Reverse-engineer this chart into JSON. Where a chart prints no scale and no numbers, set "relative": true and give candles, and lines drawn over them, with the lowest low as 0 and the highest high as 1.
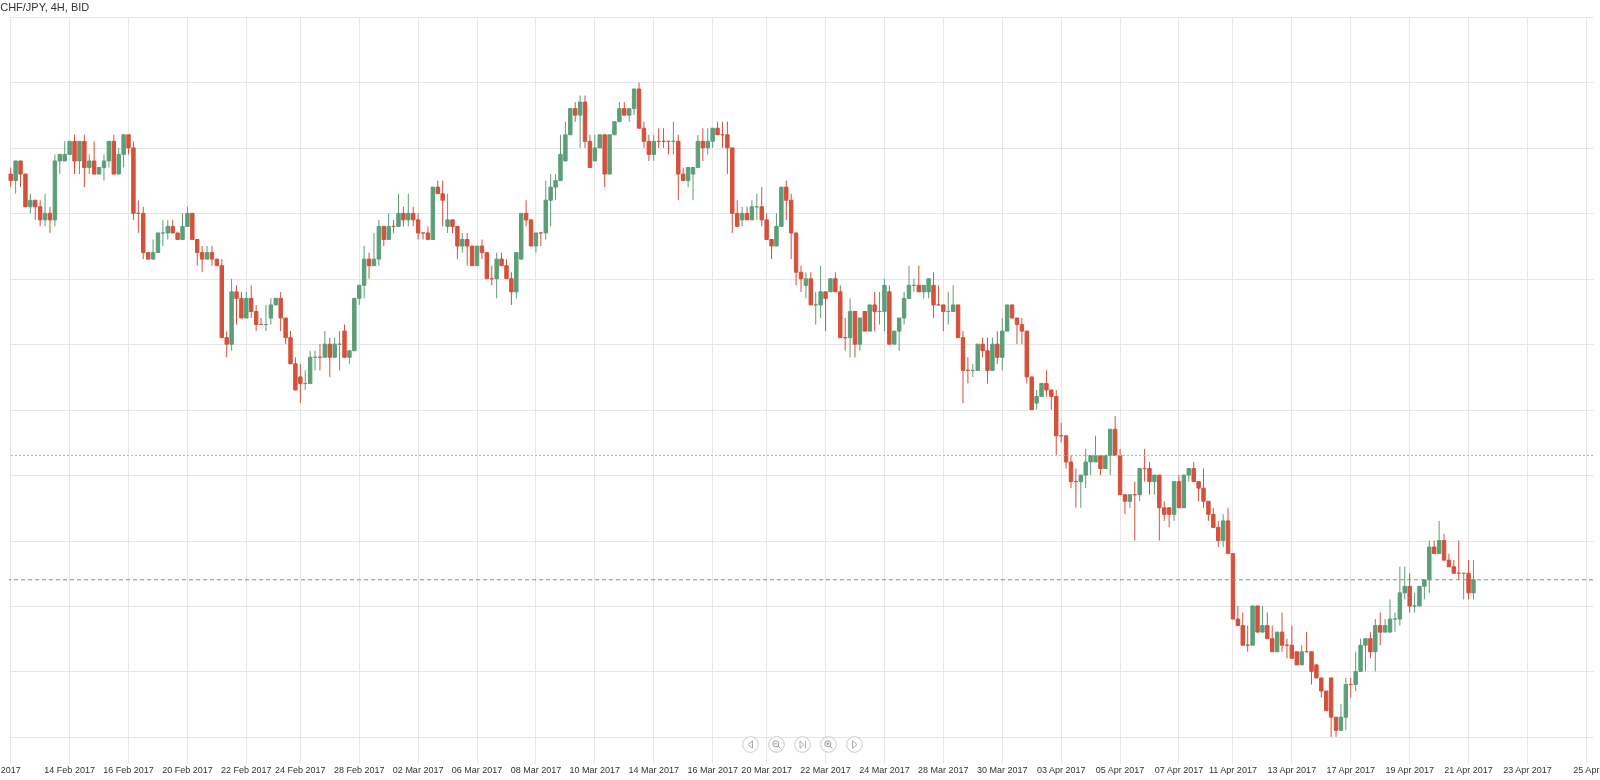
{
  "chart_data": {
    "type": "candlestick",
    "title": "CHF/JPY, 4H, BID",
    "relative": true,
    "grid": true,
    "tick_labels": "x",
    "colors": [
      "#d4513c",
      "#5c9e78",
      "#d4513c",
      "#d4513c",
      "#5c9e78",
      "#d4513c",
      "#d4513c",
      "#5c9e78",
      "#d4513c",
      "#5c9e78",
      "#5c9e78",
      "#5c9e78",
      "#5c9e78",
      "#d4513c",
      "#5c9e78",
      "#d4513c",
      "#5c9e78",
      "#d4513c",
      "#5c9e78",
      "#5c9e78",
      "#5c9e78",
      "#d4513c",
      "#5c9e78",
      "#5c9e78",
      "#d4513c",
      "#d4513c",
      "#d4513c",
      "#d4513c",
      "#d4513c",
      "#5c9e78",
      "#5c9e78",
      "#5c9e78",
      "#5c9e78",
      "#d4513c",
      "#d4513c",
      "#5c9e78",
      "#5c9e78",
      "#d4513c",
      "#d4513c",
      "#d4513c",
      "#5c9e78",
      "#d4513c",
      "#d4513c",
      "#d4513c",
      "#d4513c",
      "#5c9e78",
      "#d4513c",
      "#d4513c",
      "#5c9e78",
      "#d4513c",
      "#d4513c",
      "#d4513c",
      "#5c9e78",
      "#5c9e78",
      "#5c9e78",
      "#d4513c",
      "#d4513c",
      "#d4513c",
      "#d4513c",
      "#d4513c",
      "#5c9e78",
      "#5c9e78",
      "#5c9e78",
      "#d4513c",
      "#5c9e78",
      "#d4513c",
      "#5c9e78",
      "#5c9e78",
      "#d4513c",
      "#5c9e78",
      "#5c9e78",
      "#5c9e78",
      "#5c9e78",
      "#d4513c",
      "#5c9e78",
      "#5c9e78",
      "#d4513c",
      "#5c9e78",
      "#d4513c",
      "#5c9e78",
      "#d4513c",
      "#5c9e78",
      "#d4513c",
      "#d4513c",
      "#d4513c",
      "#d4513c",
      "#5c9e78",
      "#d4513c",
      "#d4513c",
      "#5c9e78",
      "#d4513c",
      "#d4513c",
      "#5c9e78",
      "#d4513c",
      "#d4513c",
      "#5c9e78",
      "#d4513c",
      "#d4513c",
      "#d4513c",
      "#5c9e78",
      "#d4513c",
      "#d4513c",
      "#d4513c",
      "#5c9e78",
      "#5c9e78",
      "#d4513c",
      "#d4513c",
      "#5c9e78",
      "#d4513c",
      "#5c9e78",
      "#5c9e78",
      "#5c9e78",
      "#5c9e78",
      "#5c9e78",
      "#5c9e78",
      "#d4513c",
      "#5c9e78",
      "#d4513c",
      "#d4513c",
      "#5c9e78",
      "#5c9e78",
      "#d4513c",
      "#5c9e78",
      "#5c9e78",
      "#5c9e78",
      "#d4513c",
      "#5c9e78",
      "#5c9e78",
      "#d4513c",
      "#d4513c",
      "#d4513c",
      "#5c9e78",
      "#d4513c",
      "#d4513c",
      "#d4513c",
      "#5c9e78",
      "#d4513c",
      "#d4513c",
      "#5c9e78",
      "#5c9e78",
      "#5c9e78",
      "#d4513c",
      "#5c9e78",
      "#5c9e78",
      "#d4513c",
      "#d4513c",
      "#d4513c",
      "#d4513c",
      "#d4513c",
      "#5c9e78",
      "#d4513c",
      "#5c9e78",
      "#5c9e78",
      "#d4513c",
      "#d4513c",
      "#d4513c",
      "#5c9e78",
      "#5c9e78",
      "#d4513c",
      "#d4513c",
      "#d4513c",
      "#d4513c",
      "#5c9e78",
      "#d4513c",
      "#5c9e78",
      "#5c9e78",
      "#d4513c",
      "#5c9e78",
      "#d4513c",
      "#d4513c",
      "#d4513c",
      "#5c9e78",
      "#d4513c",
      "#5c9e78",
      "#d4513c",
      "#5c9e78",
      "#d4513c",
      "#5c9e78",
      "#5c9e78",
      "#d4513c",
      "#5c9e78",
      "#5c9e78",
      "#5c9e78",
      "#5c9e78",
      "#5c9e78",
      "#d4513c",
      "#5c9e78",
      "#5c9e78",
      "#d4513c",
      "#d4513c",
      "#d4513c",
      "#5c9e78",
      "#5c9e78",
      "#d4513c",
      "#d4513c",
      "#d4513c",
      "#5c9e78",
      "#5c9e78",
      "#d4513c",
      "#d4513c",
      "#5c9e78",
      "#d4513c",
      "#5c9e78",
      "#5c9e78",
      "#d4513c",
      "#d4513c",
      "#d4513c",
      "#d4513c",
      "#d4513c",
      "#5c9e78",
      "#5c9e78",
      "#d4513c",
      "#d4513c",
      "#d4513c",
      "#d4513c",
      "#d4513c",
      "#d4513c",
      "#d4513c",
      "#5c9e78",
      "#5c9e78",
      "#5c9e78",
      "#5c9e78",
      "#d4513c",
      "#5c9e78",
      "#5c9e78",
      "#d4513c",
      "#d4513c",
      "#d4513c",
      "#5c9e78",
      "#d4513c",
      "#5c9e78",
      "#d4513c",
      "#d4513c",
      "#5c9e78",
      "#d4513c",
      "#d4513c",
      "#d4513c",
      "#5c9e78",
      "#d4513c",
      "#5c9e78",
      "#5c9e78",
      "#d4513c",
      "#d4513c",
      "#d4513c",
      "#d4513c",
      "#d4513c",
      "#d4513c",
      "#5c9e78",
      "#d4513c",
      "#d4513c",
      "#d4513c",
      "#d4513c",
      "#d4513c",
      "#5c9e78",
      "#d4513c",
      "#5c9e78",
      "#d4513c",
      "#d4513c",
      "#5c9e78",
      "#d4513c",
      "#d4513c",
      "#d4513c",
      "#d4513c",
      "#5c9e78",
      "#d4513c",
      "#d4513c",
      "#d4513c",
      "#d4513c",
      "#d4513c",
      "#d4513c",
      "#d4513c",
      "#5c9e78",
      "#5c9e78",
      "#d4513c",
      "#5c9e78",
      "#5c9e78",
      "#5c9e78",
      "#d4513c",
      "#5c9e78",
      "#d4513c",
      "#5c9e78",
      "#5c9e78",
      "#5c9e78",
      "#5c9e78",
      "#5c9e78",
      "#d4513c",
      "#5c9e78",
      "#5c9e78",
      "#5c9e78",
      "#5c9e78",
      "#d4513c",
      "#5c9e78",
      "#d4513c",
      "#d4513c",
      "#d4513c",
      "#d4513c",
      "#5c9e78",
      "#d4513c",
      "#5c9e78",
      null,
      null,
      null,
      null,
      null,
      null,
      null,
      null,
      null,
      null,
      null,
      null,
      null,
      null,
      null,
      null,
      null,
      null,
      null,
      null,
      null,
      null,
      null,
      null
    ],
    "categories": [
      "2017",
      null,
      null,
      null,
      null,
      null,
      null,
      null,
      null,
      null,
      null,
      null,
      "14 Feb 2017",
      null,
      null,
      null,
      null,
      null,
      null,
      null,
      null,
      null,
      null,
      null,
      "16 Feb 2017",
      null,
      null,
      null,
      null,
      null,
      null,
      null,
      null,
      null,
      null,
      null,
      "20 Feb 2017",
      null,
      null,
      null,
      null,
      null,
      null,
      null,
      null,
      null,
      null,
      null,
      "22 Feb 2017",
      null,
      null,
      null,
      null,
      null,
      null,
      null,
      null,
      null,
      null,
      "24 Feb 2017",
      null,
      null,
      null,
      null,
      null,
      null,
      null,
      null,
      null,
      null,
      null,
      "28 Feb 2017",
      null,
      null,
      null,
      null,
      null,
      null,
      null,
      null,
      null,
      null,
      null,
      "02 Mar 2017",
      null,
      null,
      null,
      null,
      null,
      null,
      null,
      null,
      null,
      null,
      null,
      "06 Mar 2017",
      null,
      null,
      null,
      null,
      null,
      null,
      null,
      null,
      null,
      null,
      null,
      "08 Mar 2017",
      null,
      null,
      null,
      null,
      null,
      null,
      null,
      null,
      null,
      null,
      null,
      "10 Mar 2017",
      null,
      null,
      null,
      null,
      null,
      null,
      null,
      null,
      null,
      null,
      null,
      "14 Mar 2017",
      null,
      null,
      null,
      null,
      null,
      null,
      null,
      null,
      null,
      null,
      null,
      "16 Mar 2017",
      null,
      null,
      null,
      null,
      null,
      null,
      null,
      null,
      null,
      null,
      "20 Mar 2017",
      null,
      null,
      null,
      null,
      null,
      null,
      null,
      null,
      null,
      null,
      null,
      "22 Mar 2017",
      null,
      null,
      null,
      null,
      null,
      null,
      null,
      null,
      null,
      null,
      null,
      "24 Mar 2017",
      null,
      null,
      null,
      null,
      null,
      null,
      null,
      null,
      null,
      null,
      null,
      "28 Mar 2017",
      null,
      null,
      null,
      null,
      null,
      null,
      null,
      null,
      null,
      null,
      null,
      "30 Mar 2017",
      null,
      null,
      null,
      null,
      null,
      null,
      null,
      null,
      null,
      null,
      null,
      "03 Apr 2017",
      null,
      null,
      null,
      null,
      null,
      null,
      null,
      null,
      null,
      null,
      null,
      "05 Apr 2017",
      null,
      null,
      null,
      null,
      null,
      null,
      null,
      null,
      null,
      null,
      null,
      "07 Apr 2017",
      null,
      null,
      null,
      null,
      null,
      null,
      null,
      null,
      null,
      null,
      "11 Apr 2017",
      null,
      null,
      null,
      null,
      null,
      null,
      null,
      null,
      null,
      null,
      null,
      "13 Apr 2017",
      null,
      null,
      null,
      null,
      null,
      null,
      null,
      null,
      null,
      null,
      null,
      "17 Apr 2017",
      null,
      null,
      null,
      null,
      null,
      null,
      null,
      null,
      null,
      null,
      null,
      "19 Apr 2017",
      null,
      null,
      null,
      null,
      null,
      null,
      null,
      null,
      null,
      null,
      null,
      "21 Apr 2017",
      null,
      null,
      null,
      null,
      null,
      null,
      null,
      null,
      null,
      null,
      null,
      "23 Apr 2017",
      null,
      null,
      null,
      null,
      null,
      null,
      null,
      null,
      null,
      null,
      null,
      "25 Apr",
      null
    ],
    "ohlc": [
      [
        0.86,
        0.87,
        0.84,
        0.85
      ],
      [
        0.85,
        0.88,
        0.83,
        0.88
      ],
      [
        0.88,
        0.88,
        0.84,
        0.86
      ],
      [
        0.86,
        0.86,
        0.81,
        0.81
      ],
      [
        0.81,
        0.83,
        0.8,
        0.82
      ],
      [
        0.82,
        0.82,
        0.79,
        0.81
      ],
      [
        0.81,
        0.82,
        0.78,
        0.79
      ],
      [
        0.79,
        0.83,
        0.78,
        0.8
      ],
      [
        0.8,
        0.81,
        0.77,
        0.79
      ],
      [
        0.79,
        0.89,
        0.78,
        0.88
      ],
      [
        0.88,
        0.89,
        0.86,
        0.89
      ],
      [
        0.88,
        0.91,
        0.88,
        0.89
      ],
      [
        0.89,
        0.91,
        0.89,
        0.91
      ],
      [
        0.91,
        0.92,
        0.86,
        0.88
      ],
      [
        0.88,
        0.91,
        0.86,
        0.91
      ],
      [
        0.91,
        0.92,
        0.84,
        0.87
      ],
      [
        0.87,
        0.89,
        0.86,
        0.88
      ],
      [
        0.88,
        0.91,
        0.86,
        0.86
      ],
      [
        0.86,
        0.87,
        0.86,
        0.87
      ],
      [
        0.87,
        0.89,
        0.85,
        0.88
      ],
      [
        0.88,
        0.91,
        0.87,
        0.91
      ],
      [
        0.91,
        0.92,
        0.86,
        0.86
      ],
      [
        0.86,
        0.9,
        0.86,
        0.89
      ],
      [
        0.89,
        0.92,
        0.87,
        0.92
      ],
      [
        0.92,
        0.92,
        0.89,
        0.9
      ],
      [
        0.9,
        0.91,
        0.79,
        0.8
      ],
      [
        0.8,
        0.82,
        0.77,
        0.8
      ],
      [
        0.8,
        0.81,
        0.73,
        0.74
      ],
      [
        0.74,
        0.74,
        0.73,
        0.73
      ],
      [
        0.73,
        0.76,
        0.73,
        0.74
      ],
      [
        0.74,
        0.77,
        0.74,
        0.77
      ],
      [
        0.77,
        0.79,
        0.75,
        0.77
      ],
      [
        0.77,
        0.79,
        0.76,
        0.78
      ],
      [
        0.78,
        0.79,
        0.77,
        0.77
      ],
      [
        0.77,
        0.77,
        0.76,
        0.76
      ],
      [
        0.76,
        0.8,
        0.76,
        0.78
      ],
      [
        0.78,
        0.81,
        0.78,
        0.8
      ],
      [
        0.8,
        0.8,
        0.76,
        0.76
      ],
      [
        0.76,
        0.76,
        0.72,
        0.74
      ],
      [
        0.74,
        0.75,
        0.71,
        0.73
      ],
      [
        0.73,
        0.75,
        0.73,
        0.74
      ],
      [
        0.74,
        0.75,
        0.72,
        0.73
      ],
      [
        0.73,
        0.73,
        0.72,
        0.72
      ],
      [
        0.72,
        0.73,
        0.61,
        0.61
      ],
      [
        0.61,
        0.62,
        0.58,
        0.6
      ],
      [
        0.6,
        0.7,
        0.59,
        0.68
      ],
      [
        0.68,
        0.69,
        0.63,
        0.67
      ],
      [
        0.67,
        0.68,
        0.64,
        0.64
      ],
      [
        0.64,
        0.68,
        0.64,
        0.67
      ],
      [
        0.67,
        0.69,
        0.64,
        0.65
      ],
      [
        0.65,
        0.66,
        0.62,
        0.63
      ],
      [
        0.63,
        0.64,
        0.63,
        0.63
      ],
      [
        0.63,
        0.66,
        0.62,
        0.63
      ],
      [
        0.64,
        0.67,
        0.63,
        0.66
      ],
      [
        0.66,
        0.67,
        0.66,
        0.67
      ],
      [
        0.67,
        0.68,
        0.62,
        0.64
      ],
      [
        0.64,
        0.64,
        0.6,
        0.61
      ],
      [
        0.61,
        0.62,
        0.57,
        0.57
      ],
      [
        0.57,
        0.58,
        0.53,
        0.53
      ],
      [
        0.55,
        0.57,
        0.51,
        0.54
      ],
      [
        0.54,
        0.56,
        0.53,
        0.54
      ],
      [
        0.54,
        0.59,
        0.54,
        0.58
      ],
      [
        0.58,
        0.59,
        0.56,
        0.58
      ],
      [
        0.58,
        0.6,
        0.56,
        0.58
      ],
      [
        0.58,
        0.62,
        0.58,
        0.6
      ],
      [
        0.6,
        0.61,
        0.55,
        0.58
      ],
      [
        0.58,
        0.61,
        0.58,
        0.6
      ],
      [
        0.6,
        0.62,
        0.56,
        0.6
      ],
      [
        0.62,
        0.63,
        0.58,
        0.58
      ],
      [
        0.58,
        0.59,
        0.57,
        0.59
      ],
      [
        0.59,
        0.67,
        0.59,
        0.67
      ],
      [
        0.67,
        0.69,
        0.66,
        0.69
      ],
      [
        0.69,
        0.75,
        0.67,
        0.73
      ],
      [
        0.73,
        0.74,
        0.7,
        0.72
      ],
      [
        0.72,
        0.77,
        0.72,
        0.73
      ],
      [
        0.73,
        0.79,
        0.72,
        0.78
      ],
      [
        0.78,
        0.78,
        0.75,
        0.76
      ],
      [
        0.76,
        0.8,
        0.76,
        0.78
      ],
      [
        0.78,
        0.79,
        0.77,
        0.78
      ],
      [
        0.78,
        0.83,
        0.78,
        0.8
      ],
      [
        0.8,
        0.81,
        0.78,
        0.79
      ],
      [
        0.79,
        0.83,
        0.78,
        0.8
      ],
      [
        0.8,
        0.81,
        0.78,
        0.79
      ],
      [
        0.79,
        0.8,
        0.76,
        0.77
      ],
      [
        0.77,
        0.77,
        0.76,
        0.77
      ],
      [
        0.77,
        0.78,
        0.76,
        0.76
      ],
      [
        0.76,
        0.84,
        0.76,
        0.84
      ],
      [
        0.84,
        0.85,
        0.83,
        0.83
      ],
      [
        0.83,
        0.85,
        0.78,
        0.82
      ],
      [
        0.78,
        0.83,
        0.77,
        0.79
      ],
      [
        0.79,
        0.79,
        0.77,
        0.78
      ],
      [
        0.78,
        0.78,
        0.73,
        0.75
      ],
      [
        0.75,
        0.77,
        0.74,
        0.76
      ],
      [
        0.76,
        0.77,
        0.72,
        0.75
      ],
      [
        0.75,
        0.75,
        0.72,
        0.72
      ],
      [
        0.72,
        0.75,
        0.72,
        0.75
      ],
      [
        0.75,
        0.76,
        0.73,
        0.74
      ],
      [
        0.74,
        0.74,
        0.7,
        0.7
      ],
      [
        0.7,
        0.72,
        0.69,
        0.7
      ],
      [
        0.7,
        0.74,
        0.67,
        0.73
      ],
      [
        0.73,
        0.74,
        0.72,
        0.72
      ],
      [
        0.72,
        0.73,
        0.7,
        0.7
      ],
      [
        0.7,
        0.71,
        0.66,
        0.68
      ],
      [
        0.68,
        0.74,
        0.67,
        0.74
      ],
      [
        0.73,
        0.8,
        0.73,
        0.8
      ],
      [
        0.8,
        0.82,
        0.78,
        0.79
      ],
      [
        0.79,
        0.79,
        0.75,
        0.75
      ],
      [
        0.75,
        0.77,
        0.74,
        0.77
      ],
      [
        0.77,
        0.77,
        0.75,
        0.77
      ],
      [
        0.77,
        0.85,
        0.76,
        0.82
      ],
      [
        0.82,
        0.86,
        0.78,
        0.84
      ],
      [
        0.84,
        0.86,
        0.82,
        0.85
      ],
      [
        0.85,
        0.92,
        0.85,
        0.89
      ],
      [
        0.88,
        0.94,
        0.88,
        0.92
      ],
      [
        0.92,
        0.96,
        0.92,
        0.96
      ],
      [
        0.96,
        0.97,
        0.94,
        0.95
      ],
      [
        0.95,
        0.98,
        0.9,
        0.97
      ],
      [
        0.97,
        0.98,
        0.9,
        0.91
      ],
      [
        0.91,
        0.92,
        0.87,
        0.87
      ],
      [
        0.88,
        0.92,
        0.88,
        0.9
      ],
      [
        0.9,
        0.92,
        0.9,
        0.92
      ],
      [
        0.92,
        0.92,
        0.84,
        0.86
      ],
      [
        0.86,
        0.92,
        0.86,
        0.92
      ],
      [
        0.92,
        0.94,
        0.92,
        0.94
      ],
      [
        0.94,
        0.97,
        0.94,
        0.96
      ],
      [
        0.96,
        0.97,
        0.95,
        0.95
      ],
      [
        0.95,
        0.96,
        0.94,
        0.96
      ],
      [
        0.96,
        0.99,
        0.95,
        0.99
      ],
      [
        0.99,
        1.0,
        0.93,
        0.93
      ],
      [
        0.93,
        0.94,
        0.9,
        0.91
      ],
      [
        0.91,
        0.92,
        0.88,
        0.89
      ],
      [
        0.89,
        0.92,
        0.88,
        0.91
      ],
      [
        0.91,
        0.93,
        0.9,
        0.91
      ],
      [
        0.91,
        0.93,
        0.9,
        0.91
      ],
      [
        0.91,
        0.91,
        0.89,
        0.91
      ],
      [
        0.91,
        0.94,
        0.89,
        0.91
      ],
      [
        0.91,
        0.92,
        0.82,
        0.86
      ],
      [
        0.86,
        0.87,
        0.85,
        0.85
      ],
      [
        0.85,
        0.87,
        0.84,
        0.87
      ],
      [
        0.86,
        0.87,
        0.82,
        0.87
      ],
      [
        0.87,
        0.92,
        0.87,
        0.91
      ],
      [
        0.91,
        0.93,
        0.88,
        0.9
      ],
      [
        0.9,
        0.93,
        0.89,
        0.91
      ],
      [
        0.91,
        0.93,
        0.9,
        0.93
      ],
      [
        0.93,
        0.94,
        0.92,
        0.92
      ],
      [
        0.92,
        0.94,
        0.9,
        0.92
      ],
      [
        0.92,
        0.94,
        0.86,
        0.9
      ],
      [
        0.9,
        0.9,
        0.77,
        0.8
      ],
      [
        0.8,
        0.82,
        0.78,
        0.78
      ],
      [
        0.79,
        0.81,
        0.78,
        0.8
      ],
      [
        0.8,
        0.81,
        0.79,
        0.79
      ],
      [
        0.79,
        0.82,
        0.79,
        0.81
      ],
      [
        0.81,
        0.83,
        0.79,
        0.81
      ],
      [
        0.81,
        0.84,
        0.78,
        0.79
      ],
      [
        0.79,
        0.8,
        0.76,
        0.76
      ],
      [
        0.76,
        0.76,
        0.73,
        0.75
      ],
      [
        0.75,
        0.8,
        0.75,
        0.78
      ],
      [
        0.78,
        0.84,
        0.78,
        0.84
      ],
      [
        0.84,
        0.85,
        0.79,
        0.82
      ],
      [
        0.82,
        0.83,
        0.73,
        0.77
      ],
      [
        0.77,
        0.77,
        0.69,
        0.71
      ],
      [
        0.71,
        0.72,
        0.68,
        0.7
      ],
      [
        0.69,
        0.71,
        0.67,
        0.7
      ],
      [
        0.7,
        0.71,
        0.66,
        0.66
      ],
      [
        0.66,
        0.68,
        0.63,
        0.66
      ],
      [
        0.66,
        0.72,
        0.64,
        0.68
      ],
      [
        0.68,
        0.68,
        0.62,
        0.67
      ],
      [
        0.68,
        0.7,
        0.68,
        0.7
      ],
      [
        0.7,
        0.71,
        0.68,
        0.68
      ],
      [
        0.68,
        0.69,
        0.61,
        0.61
      ],
      [
        0.61,
        0.64,
        0.59,
        0.61
      ],
      [
        0.61,
        0.67,
        0.58,
        0.65
      ],
      [
        0.65,
        0.65,
        0.58,
        0.6
      ],
      [
        0.6,
        0.64,
        0.59,
        0.64
      ],
      [
        0.65,
        0.65,
        0.62,
        0.62
      ],
      [
        0.62,
        0.66,
        0.62,
        0.66
      ],
      [
        0.66,
        0.68,
        0.62,
        0.65
      ],
      [
        0.65,
        0.68,
        0.63,
        0.65
      ],
      [
        0.65,
        0.7,
        0.62,
        0.69
      ],
      [
        0.68,
        0.69,
        0.6,
        0.6
      ],
      [
        0.6,
        0.62,
        0.6,
        0.62
      ],
      [
        0.62,
        0.64,
        0.59,
        0.64
      ],
      [
        0.64,
        0.68,
        0.63,
        0.67
      ],
      [
        0.67,
        0.72,
        0.67,
        0.69
      ],
      [
        0.69,
        0.7,
        0.68,
        0.69
      ],
      [
        0.69,
        0.72,
        0.68,
        0.68
      ],
      [
        0.68,
        0.69,
        0.67,
        0.69
      ],
      [
        0.68,
        0.7,
        0.67,
        0.7
      ],
      [
        0.69,
        0.71,
        0.64,
        0.66
      ],
      [
        0.66,
        0.69,
        0.66,
        0.66
      ],
      [
        0.66,
        0.66,
        0.62,
        0.65
      ],
      [
        0.65,
        0.68,
        0.63,
        0.65
      ],
      [
        0.65,
        0.69,
        0.65,
        0.66
      ],
      [
        0.66,
        0.66,
        0.61,
        0.61
      ],
      [
        0.61,
        0.62,
        0.51,
        0.56
      ],
      [
        0.56,
        0.58,
        0.54,
        0.56
      ],
      [
        0.56,
        0.57,
        0.55,
        0.56
      ],
      [
        0.56,
        0.6,
        0.56,
        0.6
      ],
      [
        0.6,
        0.61,
        0.58,
        0.59
      ],
      [
        0.59,
        0.61,
        0.54,
        0.56
      ],
      [
        0.56,
        0.61,
        0.56,
        0.6
      ],
      [
        0.6,
        0.62,
        0.57,
        0.58
      ],
      [
        0.58,
        0.64,
        0.56,
        0.62
      ],
      [
        0.62,
        0.66,
        0.62,
        0.66
      ],
      [
        0.66,
        0.66,
        0.64,
        0.64
      ],
      [
        0.64,
        0.64,
        0.6,
        0.63
      ],
      [
        0.63,
        0.64,
        0.6,
        0.62
      ],
      [
        0.62,
        0.62,
        0.54,
        0.55
      ],
      [
        0.55,
        0.55,
        0.5,
        0.5
      ],
      [
        0.51,
        0.53,
        0.5,
        0.52
      ],
      [
        0.52,
        0.54,
        0.52,
        0.54
      ],
      [
        0.54,
        0.56,
        0.52,
        0.53
      ],
      [
        0.53,
        0.53,
        0.5,
        0.52
      ],
      [
        0.52,
        0.53,
        0.43,
        0.46
      ],
      [
        0.46,
        0.48,
        0.45,
        0.46
      ],
      [
        0.46,
        0.46,
        0.41,
        0.42
      ],
      [
        0.42,
        0.43,
        0.38,
        0.39
      ],
      [
        0.39,
        0.41,
        0.35,
        0.39
      ],
      [
        0.39,
        0.4,
        0.35,
        0.4
      ],
      [
        0.4,
        0.44,
        0.38,
        0.42
      ],
      [
        0.42,
        0.43,
        0.4,
        0.43
      ],
      [
        0.42,
        0.46,
        0.42,
        0.43
      ],
      [
        0.43,
        0.43,
        0.4,
        0.41
      ],
      [
        0.41,
        0.43,
        0.41,
        0.43
      ],
      [
        0.43,
        0.47,
        0.4,
        0.47
      ],
      [
        0.47,
        0.49,
        0.43,
        0.43
      ],
      [
        0.43,
        0.44,
        0.37,
        0.37
      ],
      [
        0.37,
        0.37,
        0.34,
        0.36
      ],
      [
        0.36,
        0.37,
        0.35,
        0.37
      ],
      [
        0.37,
        0.39,
        0.3,
        0.37
      ],
      [
        0.37,
        0.41,
        0.36,
        0.41
      ],
      [
        0.41,
        0.44,
        0.39,
        0.41
      ],
      [
        0.41,
        0.42,
        0.37,
        0.39
      ],
      [
        0.39,
        0.4,
        0.37,
        0.4
      ],
      [
        0.4,
        0.4,
        0.3,
        0.35
      ],
      [
        0.35,
        0.36,
        0.33,
        0.34
      ],
      [
        0.35,
        0.35,
        0.32,
        0.34
      ],
      [
        0.34,
        0.39,
        0.33,
        0.39
      ],
      [
        0.39,
        0.4,
        0.35,
        0.35
      ],
      [
        0.35,
        0.4,
        0.35,
        0.4
      ],
      [
        0.4,
        0.41,
        0.39,
        0.41
      ],
      [
        0.41,
        0.42,
        0.39,
        0.39
      ],
      [
        0.39,
        0.39,
        0.36,
        0.38
      ],
      [
        0.38,
        0.41,
        0.35,
        0.36
      ],
      [
        0.36,
        0.36,
        0.33,
        0.34
      ],
      [
        0.34,
        0.35,
        0.32,
        0.32
      ],
      [
        0.32,
        0.33,
        0.29,
        0.3
      ],
      [
        0.3,
        0.34,
        0.29,
        0.33
      ],
      [
        0.33,
        0.35,
        0.28,
        0.28
      ],
      [
        0.28,
        0.28,
        0.18,
        0.18
      ],
      [
        0.18,
        0.2,
        0.17,
        0.17
      ],
      [
        0.17,
        0.19,
        0.14,
        0.14
      ],
      [
        0.14,
        0.17,
        0.13,
        0.14
      ],
      [
        0.14,
        0.2,
        0.14,
        0.2
      ],
      [
        0.2,
        0.2,
        0.16,
        0.16
      ],
      [
        0.16,
        0.2,
        0.16,
        0.17
      ],
      [
        0.17,
        0.19,
        0.15,
        0.15
      ],
      [
        0.15,
        0.17,
        0.13,
        0.13
      ],
      [
        0.13,
        0.16,
        0.13,
        0.16
      ],
      [
        0.16,
        0.19,
        0.13,
        0.14
      ],
      [
        0.14,
        0.15,
        0.12,
        0.14
      ],
      [
        0.14,
        0.17,
        0.12,
        0.12
      ],
      [
        0.13,
        0.13,
        0.11,
        0.11
      ],
      [
        0.11,
        0.14,
        0.11,
        0.13
      ],
      [
        0.13,
        0.16,
        0.13,
        0.13
      ],
      [
        0.13,
        0.13,
        0.08,
        0.1
      ],
      [
        0.11,
        0.11,
        0.09,
        0.09
      ],
      [
        0.09,
        0.09,
        0.06,
        0.07
      ],
      [
        0.07,
        0.07,
        0.04,
        0.04
      ],
      [
        0.09,
        0.09,
        0.0,
        0.03
      ],
      [
        0.03,
        0.03,
        0.0,
        0.01
      ],
      [
        0.01,
        0.05,
        0.01,
        0.03
      ],
      [
        0.03,
        0.09,
        0.01,
        0.08
      ],
      [
        0.08,
        0.09,
        0.06,
        0.08
      ],
      [
        0.08,
        0.13,
        0.07,
        0.1
      ],
      [
        0.1,
        0.15,
        0.1,
        0.14
      ],
      [
        0.14,
        0.15,
        0.1,
        0.15
      ],
      [
        0.15,
        0.16,
        0.12,
        0.13
      ],
      [
        0.13,
        0.18,
        0.1,
        0.17
      ],
      [
        0.17,
        0.19,
        0.14,
        0.16
      ],
      [
        0.16,
        0.18,
        0.16,
        0.17
      ],
      [
        0.16,
        0.21,
        0.16,
        0.18
      ],
      [
        0.18,
        0.19,
        0.16,
        0.18
      ],
      [
        0.18,
        0.26,
        0.17,
        0.22
      ],
      [
        0.22,
        0.26,
        0.21,
        0.23
      ],
      [
        0.23,
        0.25,
        0.19,
        0.2
      ],
      [
        0.2,
        0.22,
        0.19,
        0.2
      ],
      [
        0.2,
        0.23,
        0.2,
        0.23
      ],
      [
        0.23,
        0.24,
        0.21,
        0.24
      ],
      [
        0.24,
        0.3,
        0.22,
        0.29
      ],
      [
        0.29,
        0.3,
        0.28,
        0.28
      ],
      [
        0.28,
        0.33,
        0.28,
        0.3
      ],
      [
        0.3,
        0.31,
        0.27,
        0.27
      ],
      [
        0.27,
        0.28,
        0.26,
        0.26
      ],
      [
        0.26,
        0.27,
        0.25,
        0.25
      ],
      [
        0.25,
        0.3,
        0.24,
        0.25
      ],
      [
        0.25,
        0.25,
        0.21,
        0.25
      ],
      [
        0.25,
        0.27,
        0.21,
        0.22
      ],
      [
        0.22,
        0.27,
        0.21,
        0.24
      ],
      null,
      null,
      null,
      null,
      null,
      null,
      null,
      null,
      null,
      null,
      null,
      null,
      null,
      null,
      null,
      null,
      null,
      null,
      null,
      null,
      null,
      null,
      null,
      null
    ],
    "ref_lines": [
      {
        "axis": "y",
        "value": 0.43,
        "color": "#b4b4b4",
        "line_style": "dotted"
      },
      {
        "axis": "y",
        "value": 0.24,
        "color": "#6a9e88",
        "line_style": "dashed"
      }
    ]
  }
}
